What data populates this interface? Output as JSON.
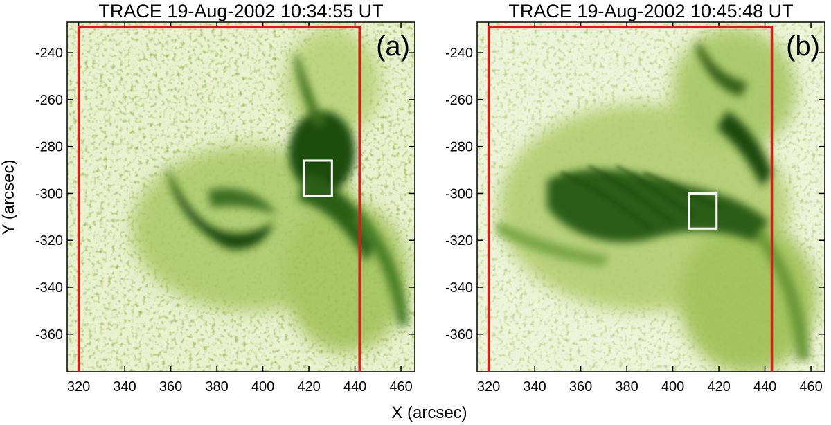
{
  "figure": {
    "x_axis_label": "X (arcsec)",
    "y_axis_label": "Y (arcsec)",
    "colors": {
      "image_light": "#f4f8e4",
      "image_mid": "#8fb83a",
      "image_dark": "#0f3a08",
      "region_box": "#e01818",
      "roi_box": "#ffffff"
    },
    "axes": {
      "xlim": [
        315,
        466
      ],
      "ylim": [
        -376,
        -227
      ],
      "x_ticks": [
        {
          "value": 320,
          "label": "320"
        },
        {
          "value": 340,
          "label": "340"
        },
        {
          "value": 360,
          "label": "360"
        },
        {
          "value": 380,
          "label": "380"
        },
        {
          "value": 400,
          "label": "400"
        },
        {
          "value": 420,
          "label": "420"
        },
        {
          "value": 440,
          "label": "440"
        },
        {
          "value": 460,
          "label": "460"
        }
      ],
      "y_ticks": [
        {
          "value": -240,
          "label": "-240"
        },
        {
          "value": -260,
          "label": "-260"
        },
        {
          "value": -280,
          "label": "-280"
        },
        {
          "value": -300,
          "label": "-300"
        },
        {
          "value": -320,
          "label": "-320"
        },
        {
          "value": -340,
          "label": "-340"
        },
        {
          "value": -360,
          "label": "-360"
        }
      ]
    },
    "panels": [
      {
        "id": "a",
        "title": "TRACE 19-Aug-2002 10:34:55 UT",
        "label": "(a)",
        "red_region": {
          "x": [
            320,
            442
          ],
          "y": [
            -376,
            -229
          ]
        },
        "white_box": {
          "x": [
            418,
            430
          ],
          "y": [
            -301,
            -286
          ]
        }
      },
      {
        "id": "b",
        "title": "TRACE 19-Aug-2002 10:45:48 UT",
        "label": "(b)",
        "red_region": {
          "x": [
            320,
            443
          ],
          "y": [
            -376,
            -229
          ]
        },
        "white_box": {
          "x": [
            407,
            419
          ],
          "y": [
            -315,
            -300
          ]
        }
      }
    ]
  }
}
